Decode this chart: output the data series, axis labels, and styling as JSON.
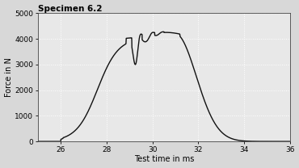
{
  "title": "Specimen 6.2",
  "xlabel": "Test time in ms",
  "ylabel": "Force in N",
  "xlim": [
    25,
    36
  ],
  "ylim": [
    0,
    5000
  ],
  "xticks": [
    26,
    28,
    30,
    32,
    34,
    36
  ],
  "yticks": [
    0,
    1000,
    2000,
    3000,
    4000,
    5000
  ],
  "background_color": "#d8d8d8",
  "plot_bg_color": "#e8e8e8",
  "grid_color": "#ffffff",
  "line_color": "#111111",
  "line_width": 1.0,
  "title_fontsize": 7.5,
  "label_fontsize": 7,
  "tick_fontsize": 6.5
}
